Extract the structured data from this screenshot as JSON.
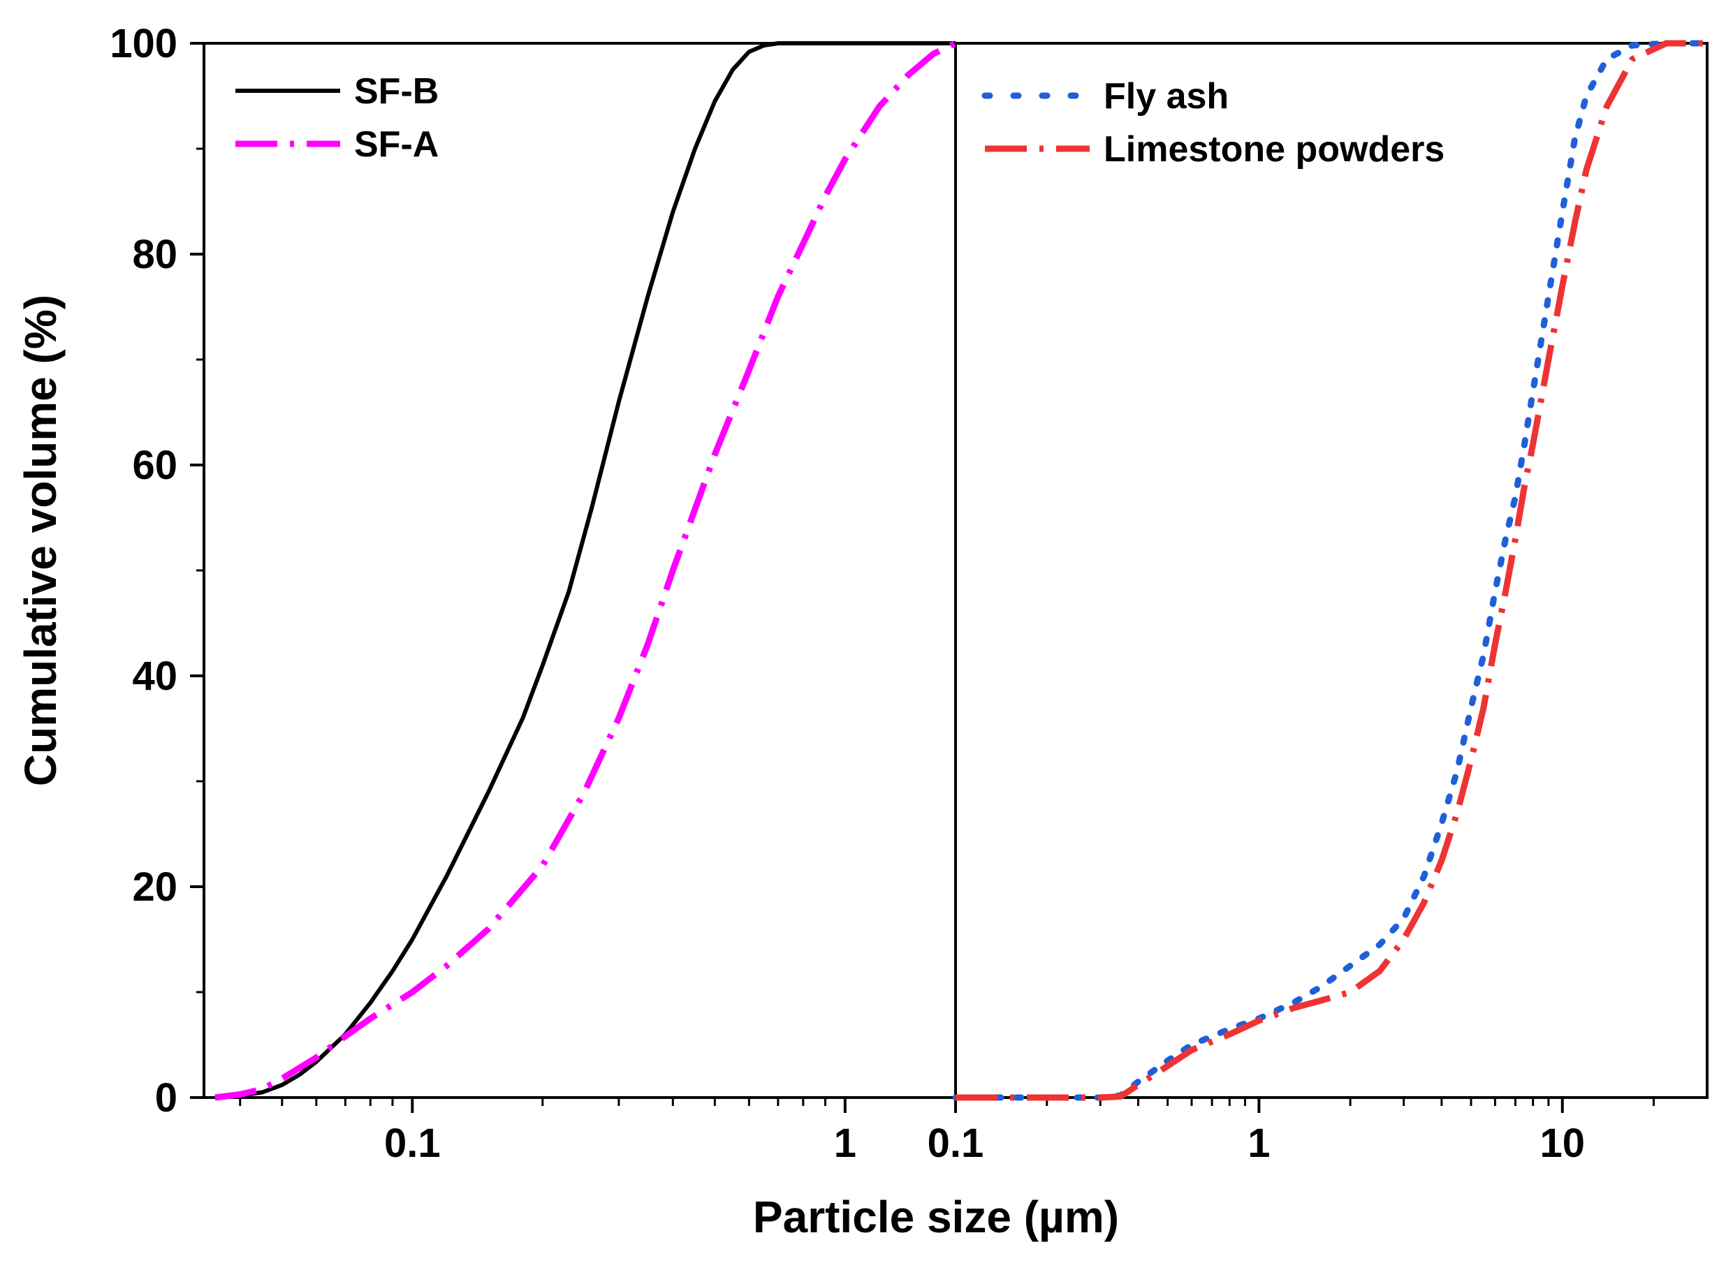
{
  "chart_data": {
    "type": "line",
    "title": "",
    "ylabel": "Cumulative volume (%)",
    "xlabel": "Particle size (µm)",
    "ylim": [
      0,
      100
    ],
    "yticks": [
      0,
      20,
      40,
      60,
      80,
      100
    ],
    "ytick_labels": [
      "0",
      "20",
      "40",
      "60",
      "80",
      "100"
    ],
    "grid": false,
    "x_scale": "log",
    "panels": [
      {
        "xlim": [
          0.033,
          1.8
        ],
        "xticks": [
          0.1,
          1
        ],
        "xtick_labels": [
          "0.1",
          "1"
        ],
        "legend_position": "top-left",
        "series": [
          {
            "name": "SF-B",
            "color": "#000000",
            "style": "solid",
            "x": [
              0.035,
              0.04,
              0.045,
              0.05,
              0.055,
              0.06,
              0.07,
              0.08,
              0.09,
              0.1,
              0.12,
              0.15,
              0.18,
              0.2,
              0.23,
              0.26,
              0.3,
              0.35,
              0.4,
              0.45,
              0.5,
              0.55,
              0.6,
              0.65,
              0.7,
              0.8,
              1.0,
              1.8
            ],
            "y": [
              0,
              0.2,
              0.5,
              1.2,
              2.2,
              3.4,
              6.0,
              9.0,
              12.0,
              15.0,
              21.0,
              29.0,
              36.0,
              41.0,
              48.0,
              56.0,
              66.0,
              76.0,
              84.0,
              90.0,
              94.5,
              97.5,
              99.2,
              99.8,
              100,
              100,
              100,
              100
            ]
          },
          {
            "name": "SF-A",
            "color": "#ff00ff",
            "style": "dash-dot",
            "x": [
              0.035,
              0.04,
              0.045,
              0.05,
              0.06,
              0.07,
              0.08,
              0.1,
              0.12,
              0.15,
              0.2,
              0.25,
              0.3,
              0.35,
              0.4,
              0.5,
              0.6,
              0.7,
              0.8,
              0.9,
              1.0,
              1.2,
              1.4,
              1.6,
              1.8
            ],
            "y": [
              0,
              0.3,
              0.8,
              1.8,
              3.8,
              5.8,
              7.5,
              10.0,
              12.5,
              16.0,
              22.0,
              29.0,
              36.0,
              43.0,
              50.0,
              61.0,
              69.0,
              76.0,
              81.0,
              85.5,
              89.0,
              94.0,
              97.0,
              99.0,
              100
            ]
          }
        ]
      },
      {
        "xlim": [
          0.1,
          30
        ],
        "xticks": [
          0.1,
          1,
          10
        ],
        "xtick_labels": [
          "0.1",
          "1",
          "10"
        ],
        "legend_position": "top-left",
        "series": [
          {
            "name": "Fly ash",
            "color": "#1f5fd8",
            "style": "dotted",
            "x": [
              0.1,
              0.3,
              0.35,
              0.4,
              0.5,
              0.6,
              0.8,
              1.0,
              1.3,
              1.6,
              2.0,
              2.5,
              3.0,
              3.5,
              4.0,
              4.5,
              5.0,
              5.5,
              6.0,
              6.5,
              7.0,
              7.5,
              8.0,
              9.0,
              10.0,
              11.0,
              12.0,
              14.0,
              17.0,
              22.0,
              30.0
            ],
            "y": [
              0,
              0,
              0.2,
              1.5,
              3.5,
              5.0,
              6.5,
              7.5,
              9.0,
              10.5,
              12.5,
              14.5,
              17.0,
              21.0,
              26.0,
              31.0,
              37.0,
              42.0,
              48.0,
              53.0,
              57.0,
              62.0,
              67.0,
              76.0,
              84.0,
              91.0,
              95.0,
              98.5,
              99.8,
              100,
              100
            ]
          },
          {
            "name": "Limestone powders",
            "color": "#ee3333",
            "style": "dash-dot",
            "x": [
              0.1,
              0.3,
              0.35,
              0.4,
              0.5,
              0.6,
              0.8,
              1.0,
              1.3,
              1.6,
              2.0,
              2.5,
              3.0,
              3.5,
              4.0,
              4.5,
              5.0,
              5.5,
              6.0,
              6.5,
              7.0,
              7.5,
              8.0,
              9.0,
              10.0,
              11.0,
              12.0,
              14.0,
              17.0,
              22.0,
              30.0
            ],
            "y": [
              0,
              0,
              0.1,
              1.2,
              3.0,
              4.5,
              6.0,
              7.3,
              8.5,
              9.2,
              10.0,
              12.0,
              15.0,
              18.5,
              22.5,
              27.0,
              32.0,
              37.0,
              43.0,
              48.0,
              53.0,
              58.0,
              62.0,
              70.0,
              77.0,
              83.0,
              88.0,
              94.0,
              98.5,
              100,
              100
            ]
          }
        ]
      }
    ]
  }
}
